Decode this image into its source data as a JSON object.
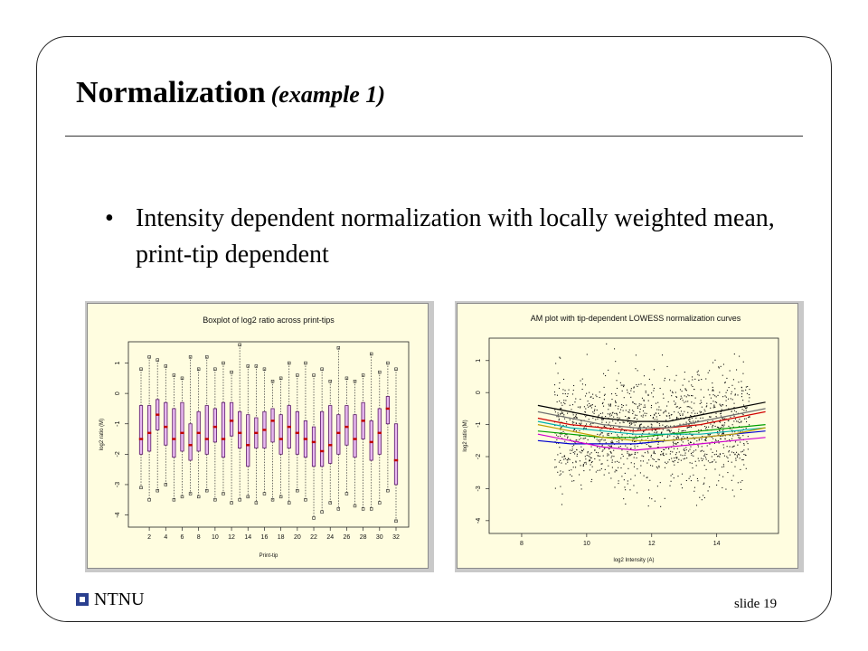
{
  "slide": {
    "title": "Normalization",
    "title_sub": "(example 1)",
    "bullet": "Intensity dependent normalization with locally weighted mean, print-tip dependent",
    "footer_org": "NTNU",
    "slide_number": "slide 19"
  },
  "colors": {
    "box_fill": "#e8b8f0",
    "box_edge": "#5a1a6a",
    "median": "#c00000",
    "panel_bg": "#fffde0",
    "logo": "#2a3f8f"
  },
  "chart_data": [
    {
      "type": "boxplot",
      "title": "Boxplot of log2 ratio across print-tips",
      "xlabel": "Print-tip",
      "ylabel": "log2 ratio (M)",
      "xticks": [
        "2",
        "4",
        "6",
        "8",
        "10",
        "12",
        "14",
        "16",
        "18",
        "20",
        "22",
        "24",
        "26",
        "28",
        "30",
        "32"
      ],
      "yticks": [
        "1",
        "0",
        "-1",
        "-2",
        "-3",
        "-4"
      ],
      "ylim": [
        -4.4,
        1.7
      ],
      "medians": [
        -1.5,
        -1.3,
        -0.7,
        -1.1,
        -1.5,
        -1.3,
        -1.7,
        -1.3,
        -1.5,
        -1.1,
        -1.5,
        -0.9,
        -1.3,
        -1.7,
        -1.3,
        -1.2,
        -0.9,
        -1.5,
        -1.1,
        -1.3,
        -1.5,
        -1.6,
        -1.9,
        -1.7,
        -1.3,
        -1.1,
        -1.5,
        -0.9,
        -1.6,
        -1.3,
        -0.5,
        -2.2
      ],
      "q1": [
        -2.0,
        -1.9,
        -1.2,
        -1.7,
        -2.1,
        -1.9,
        -2.2,
        -1.9,
        -2.0,
        -1.6,
        -2.1,
        -1.4,
        -1.8,
        -2.4,
        -1.8,
        -1.8,
        -1.6,
        -2.0,
        -1.8,
        -2.0,
        -2.1,
        -2.4,
        -2.4,
        -2.3,
        -2.0,
        -1.7,
        -2.1,
        -1.5,
        -2.2,
        -2.0,
        -1.0,
        -3.0
      ],
      "q3": [
        -0.4,
        -0.4,
        -0.2,
        -0.3,
        -0.5,
        -0.3,
        -1.0,
        -0.6,
        -0.4,
        -0.5,
        -0.3,
        -0.3,
        -0.6,
        -0.7,
        -0.8,
        -0.6,
        -0.5,
        -0.7,
        -0.4,
        -0.6,
        -0.9,
        -1.1,
        -0.6,
        -0.4,
        -0.7,
        -0.4,
        -0.7,
        -0.3,
        -0.9,
        -0.5,
        -0.1,
        -1.0
      ],
      "whisker_low": [
        -3.1,
        -3.5,
        -3.2,
        -3.0,
        -3.5,
        -3.4,
        -3.3,
        -3.4,
        -3.2,
        -3.5,
        -3.3,
        -3.6,
        -3.5,
        -3.4,
        -3.6,
        -3.3,
        -3.5,
        -3.4,
        -3.6,
        -3.2,
        -3.5,
        -4.1,
        -3.9,
        -3.6,
        -3.8,
        -3.3,
        -3.7,
        -3.8,
        -3.8,
        -3.6,
        -3.2,
        -4.2
      ],
      "whisker_high": [
        0.8,
        1.2,
        1.1,
        0.9,
        0.6,
        0.5,
        1.2,
        0.8,
        1.2,
        0.8,
        1.0,
        0.7,
        1.6,
        0.9,
        0.9,
        0.8,
        0.4,
        0.5,
        1.0,
        0.6,
        1.0,
        0.6,
        0.8,
        0.4,
        1.5,
        0.5,
        0.4,
        0.6,
        1.3,
        0.7,
        1.0,
        0.8
      ]
    },
    {
      "type": "scatter",
      "title": "AM plot with tip-dependent LOWESS normalization curves",
      "xlabel": "log2 Intensity (A)",
      "ylabel": "log2 ratio (M)",
      "xticks": [
        "8",
        "10",
        "12",
        "14"
      ],
      "yticks": [
        "1",
        "0",
        "-1",
        "-2",
        "-3",
        "-4"
      ],
      "xlim": [
        7.0,
        15.9
      ],
      "ylim": [
        -4.4,
        1.7
      ],
      "curve_colors": [
        "#000000",
        "#d00000",
        "#00a000",
        "#0000d0",
        "#00b0b0",
        "#d000d0",
        "#c0a000",
        "#707070"
      ],
      "curve_x": [
        8.5,
        9.5,
        10.5,
        11.5,
        12.5,
        13.5,
        14.5,
        15.5
      ],
      "curves": [
        [
          -0.4,
          -0.6,
          -0.8,
          -0.9,
          -0.9,
          -0.7,
          -0.5,
          -0.3
        ],
        [
          -0.8,
          -1.0,
          -1.1,
          -1.2,
          -1.1,
          -1.0,
          -0.8,
          -0.6
        ],
        [
          -1.2,
          -1.3,
          -1.4,
          -1.4,
          -1.3,
          -1.2,
          -1.1,
          -1.0
        ],
        [
          -1.5,
          -1.6,
          -1.6,
          -1.6,
          -1.5,
          -1.4,
          -1.3,
          -1.2
        ],
        [
          -0.9,
          -1.1,
          -1.2,
          -1.3,
          -1.3,
          -1.3,
          -1.2,
          -1.1
        ],
        [
          -1.3,
          -1.5,
          -1.7,
          -1.8,
          -1.7,
          -1.6,
          -1.5,
          -1.4
        ],
        [
          -1.0,
          -1.2,
          -1.4,
          -1.5,
          -1.5,
          -1.4,
          -1.3,
          -1.1
        ],
        [
          -0.6,
          -0.8,
          -1.0,
          -1.1,
          -1.1,
          -0.9,
          -0.7,
          -0.5
        ]
      ]
    }
  ]
}
